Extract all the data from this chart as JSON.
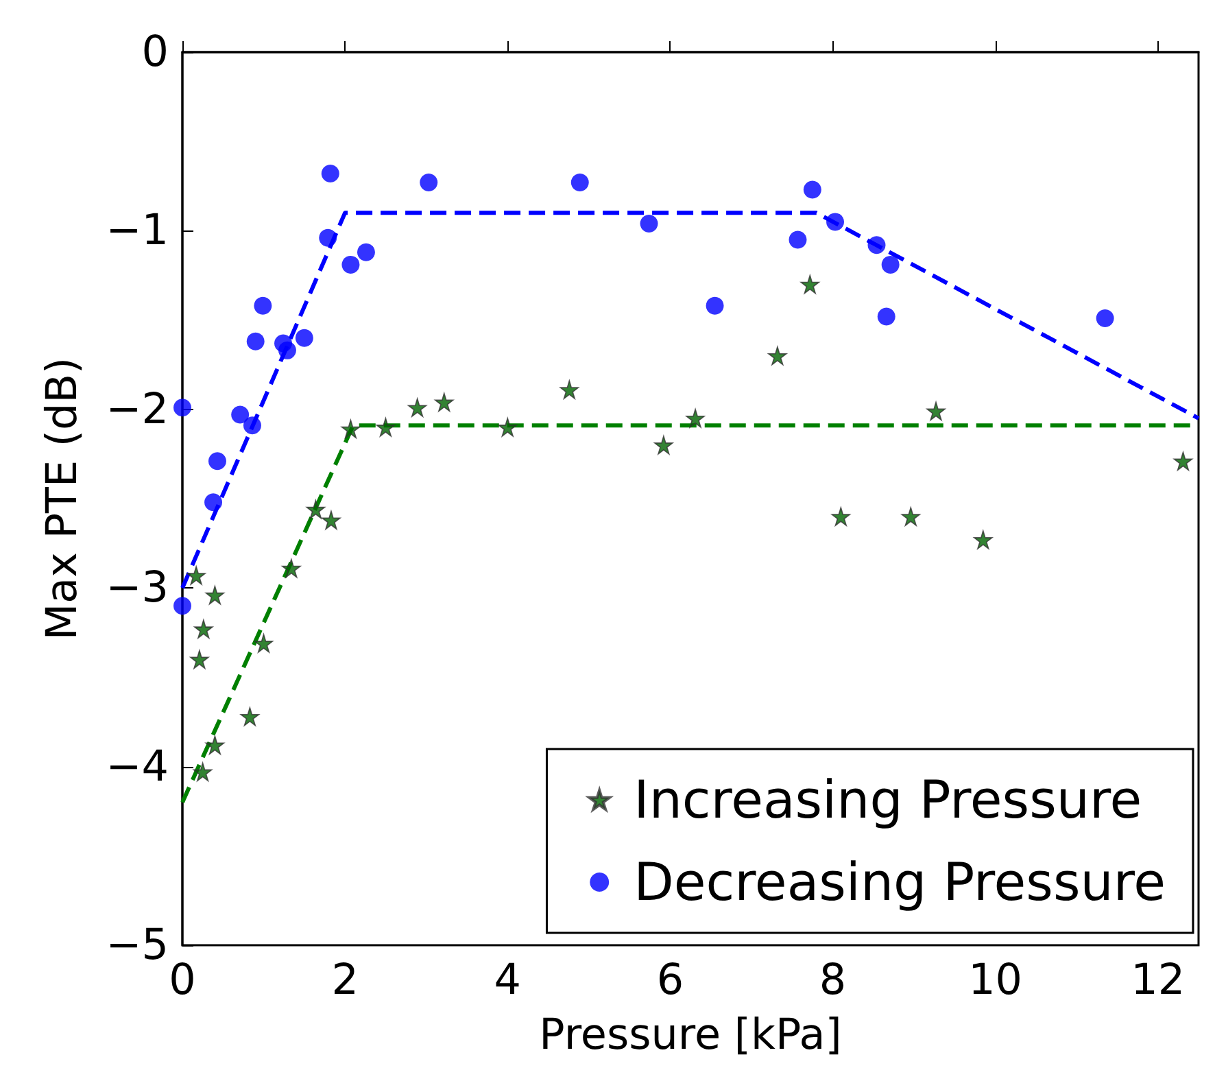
{
  "chart_data": {
    "type": "scatter",
    "xlabel": "Pressure [kPa]",
    "ylabel": "Max PTE (dB)",
    "xlim": [
      0,
      12.5
    ],
    "xticks": [
      0,
      2,
      4,
      6,
      8,
      10,
      12
    ],
    "ylim": [
      -5,
      0
    ],
    "yticks": [
      -5,
      -4,
      -3,
      -2,
      -1,
      0
    ],
    "grid": false,
    "legend": "bottom right",
    "series": [
      {
        "name": "Increasing Pressure",
        "marker": "star",
        "color": "#006400",
        "x": [
          0.17,
          0.4,
          0.26,
          0.21,
          1.0,
          1.34,
          1.64,
          1.83,
          2.07,
          2.5,
          2.89,
          0.83,
          0.4,
          0.25,
          3.22,
          4.0,
          4.76,
          5.92,
          6.31,
          7.32,
          7.72,
          8.1,
          8.96,
          9.27,
          9.85,
          12.31
        ],
        "values": [
          -2.93,
          -3.04,
          -3.23,
          -3.4,
          -3.31,
          -2.89,
          -2.56,
          -2.62,
          -2.11,
          -2.1,
          -1.99,
          -3.72,
          -3.88,
          -4.03,
          -1.96,
          -2.1,
          -1.89,
          -2.2,
          -2.05,
          -1.7,
          -1.3,
          -2.6,
          -2.6,
          -2.01,
          -2.73,
          -2.29
        ]
      },
      {
        "name": "Decreasing Pressure",
        "marker": "circle",
        "color": "#0000ff",
        "x": [
          0,
          0,
          0.43,
          0.38,
          0.71,
          0.86,
          0.9,
          0.99,
          1.24,
          1.29,
          1.5,
          1.82,
          1.79,
          2.07,
          2.26,
          3.03,
          4.89,
          5.74,
          6.55,
          7.57,
          7.75,
          8.03,
          8.54,
          8.71,
          8.66,
          11.35
        ],
        "values": [
          -1.99,
          -3.1,
          -2.29,
          -2.52,
          -2.03,
          -2.09,
          -1.62,
          -1.42,
          -1.63,
          -1.67,
          -1.6,
          -0.68,
          -1.04,
          -1.19,
          -1.12,
          -0.73,
          -0.73,
          -0.96,
          -1.42,
          -1.05,
          -0.77,
          -0.95,
          -1.08,
          -1.19,
          -1.48,
          -1.49
        ]
      },
      {
        "type": "line",
        "line_style": "dashed",
        "marker": "none",
        "color": "#0000ff",
        "x": [
          0,
          2,
          7.8,
          12.5
        ],
        "values": [
          -3.0,
          -0.9,
          -0.9,
          -2.05
        ]
      },
      {
        "type": "line",
        "line_style": "dashed",
        "marker": "none",
        "color": "#008000",
        "x": [
          0,
          2.1,
          12.5
        ],
        "values": [
          -4.2,
          -2.09,
          -2.09
        ]
      }
    ]
  }
}
